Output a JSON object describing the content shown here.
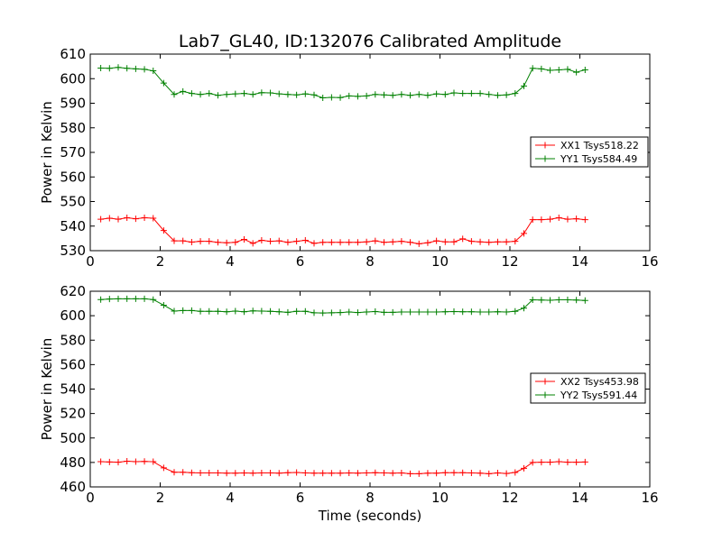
{
  "chart_data": [
    {
      "type": "line",
      "title": "Lab7_GL40, ID:132076 Calibrated Amplitude",
      "xlabel": "",
      "ylabel": "Power in Kelvin",
      "xlim": [
        0,
        16
      ],
      "ylim": [
        530,
        610
      ],
      "xticks": [
        "0",
        "2",
        "4",
        "6",
        "8",
        "10",
        "12",
        "14",
        "16"
      ],
      "yticks": [
        "530",
        "540",
        "550",
        "560",
        "570",
        "580",
        "590",
        "600",
        "610"
      ],
      "grid": false,
      "legend_position": "center-right",
      "x": [
        0.3,
        0.55,
        0.8,
        1.05,
        1.3,
        1.55,
        1.8,
        2.1,
        2.4,
        2.65,
        2.9,
        3.15,
        3.4,
        3.65,
        3.9,
        4.15,
        4.4,
        4.65,
        4.9,
        5.15,
        5.4,
        5.65,
        5.9,
        6.15,
        6.4,
        6.65,
        6.9,
        7.15,
        7.4,
        7.65,
        7.9,
        8.15,
        8.4,
        8.65,
        8.9,
        9.15,
        9.4,
        9.65,
        9.9,
        10.15,
        10.4,
        10.65,
        10.9,
        11.15,
        11.4,
        11.65,
        11.9,
        12.15,
        12.4,
        12.65,
        12.9,
        13.15,
        13.4,
        13.65,
        13.9,
        14.15
      ],
      "series": [
        {
          "name": "XX1 Tsys518.22",
          "color": "#ff0000",
          "values": [
            542.8,
            543.2,
            542.8,
            543.4,
            543.0,
            543.4,
            543.2,
            538.2,
            534.0,
            534.0,
            533.5,
            533.8,
            533.8,
            533.4,
            533.2,
            533.4,
            534.6,
            533.0,
            534.2,
            533.8,
            534.0,
            533.4,
            533.8,
            534.2,
            533.0,
            533.4,
            533.4,
            533.4,
            533.4,
            533.4,
            533.6,
            534.0,
            533.4,
            533.6,
            533.8,
            533.4,
            532.8,
            533.2,
            534.0,
            533.6,
            533.6,
            534.8,
            533.8,
            533.6,
            533.4,
            533.6,
            533.6,
            533.8,
            537.0,
            542.6,
            542.6,
            542.8,
            543.4,
            542.8,
            543.0,
            542.6
          ]
        },
        {
          "name": "YY1 Tsys584.49",
          "color": "#008000",
          "values": [
            604.3,
            604.2,
            604.6,
            604.2,
            604.0,
            603.8,
            603.2,
            598.2,
            593.6,
            594.8,
            594.0,
            593.6,
            594.0,
            593.2,
            593.6,
            593.8,
            594.0,
            593.6,
            594.3,
            594.2,
            593.8,
            593.6,
            593.4,
            593.8,
            593.4,
            592.2,
            592.4,
            592.3,
            593.0,
            592.8,
            593.0,
            593.6,
            593.4,
            593.2,
            593.6,
            593.2,
            593.6,
            593.2,
            593.8,
            593.6,
            594.2,
            594.0,
            594.0,
            594.0,
            593.6,
            593.2,
            593.4,
            594.0,
            597.0,
            604.2,
            604.0,
            603.4,
            603.6,
            603.8,
            602.6,
            603.6
          ]
        }
      ]
    },
    {
      "type": "line",
      "title": "",
      "xlabel": "Time (seconds)",
      "ylabel": "Power in Kelvin",
      "xlim": [
        0,
        16
      ],
      "ylim": [
        460,
        620
      ],
      "xticks": [
        "0",
        "2",
        "4",
        "6",
        "8",
        "10",
        "12",
        "14",
        "16"
      ],
      "yticks": [
        "460",
        "480",
        "500",
        "520",
        "540",
        "560",
        "580",
        "600",
        "620"
      ],
      "grid": false,
      "legend_position": "center-right",
      "x": [
        0.3,
        0.55,
        0.8,
        1.05,
        1.3,
        1.55,
        1.8,
        2.1,
        2.4,
        2.65,
        2.9,
        3.15,
        3.4,
        3.65,
        3.9,
        4.15,
        4.4,
        4.65,
        4.9,
        5.15,
        5.4,
        5.65,
        5.9,
        6.15,
        6.4,
        6.65,
        6.9,
        7.15,
        7.4,
        7.65,
        7.9,
        8.15,
        8.4,
        8.65,
        8.9,
        9.15,
        9.4,
        9.65,
        9.9,
        10.15,
        10.4,
        10.65,
        10.9,
        11.15,
        11.4,
        11.65,
        11.9,
        12.15,
        12.4,
        12.65,
        12.9,
        13.15,
        13.4,
        13.65,
        13.9,
        14.15
      ],
      "series": [
        {
          "name": "XX2 Tsys453.98",
          "color": "#ff0000",
          "values": [
            480.6,
            480.4,
            480.2,
            481.0,
            480.6,
            480.8,
            480.6,
            475.6,
            472.0,
            472.0,
            471.6,
            471.4,
            471.4,
            471.4,
            471.2,
            471.2,
            471.4,
            471.2,
            471.4,
            471.4,
            471.2,
            471.6,
            471.8,
            471.4,
            471.2,
            471.2,
            471.2,
            471.2,
            471.4,
            471.2,
            471.4,
            471.6,
            471.4,
            471.2,
            471.4,
            470.8,
            470.8,
            471.2,
            471.2,
            471.6,
            471.6,
            471.6,
            471.4,
            471.2,
            470.8,
            471.4,
            471.0,
            471.8,
            475.2,
            480.0,
            480.2,
            480.2,
            480.6,
            480.2,
            480.2,
            480.4
          ]
        },
        {
          "name": "YY2 Tsys591.44",
          "color": "#008000",
          "values": [
            613.2,
            613.6,
            613.8,
            613.8,
            613.8,
            613.8,
            613.2,
            608.6,
            603.8,
            604.2,
            604.2,
            603.6,
            603.6,
            603.6,
            603.2,
            603.8,
            603.2,
            604.0,
            603.8,
            603.6,
            603.2,
            602.8,
            603.6,
            603.6,
            602.4,
            602.2,
            602.4,
            602.6,
            603.0,
            602.6,
            603.0,
            603.4,
            602.8,
            602.8,
            603.0,
            603.0,
            603.0,
            603.0,
            603.0,
            603.2,
            603.4,
            603.2,
            603.2,
            603.0,
            603.0,
            603.2,
            603.0,
            603.6,
            606.2,
            613.0,
            612.8,
            612.6,
            613.0,
            613.0,
            612.8,
            612.4
          ]
        }
      ]
    }
  ]
}
